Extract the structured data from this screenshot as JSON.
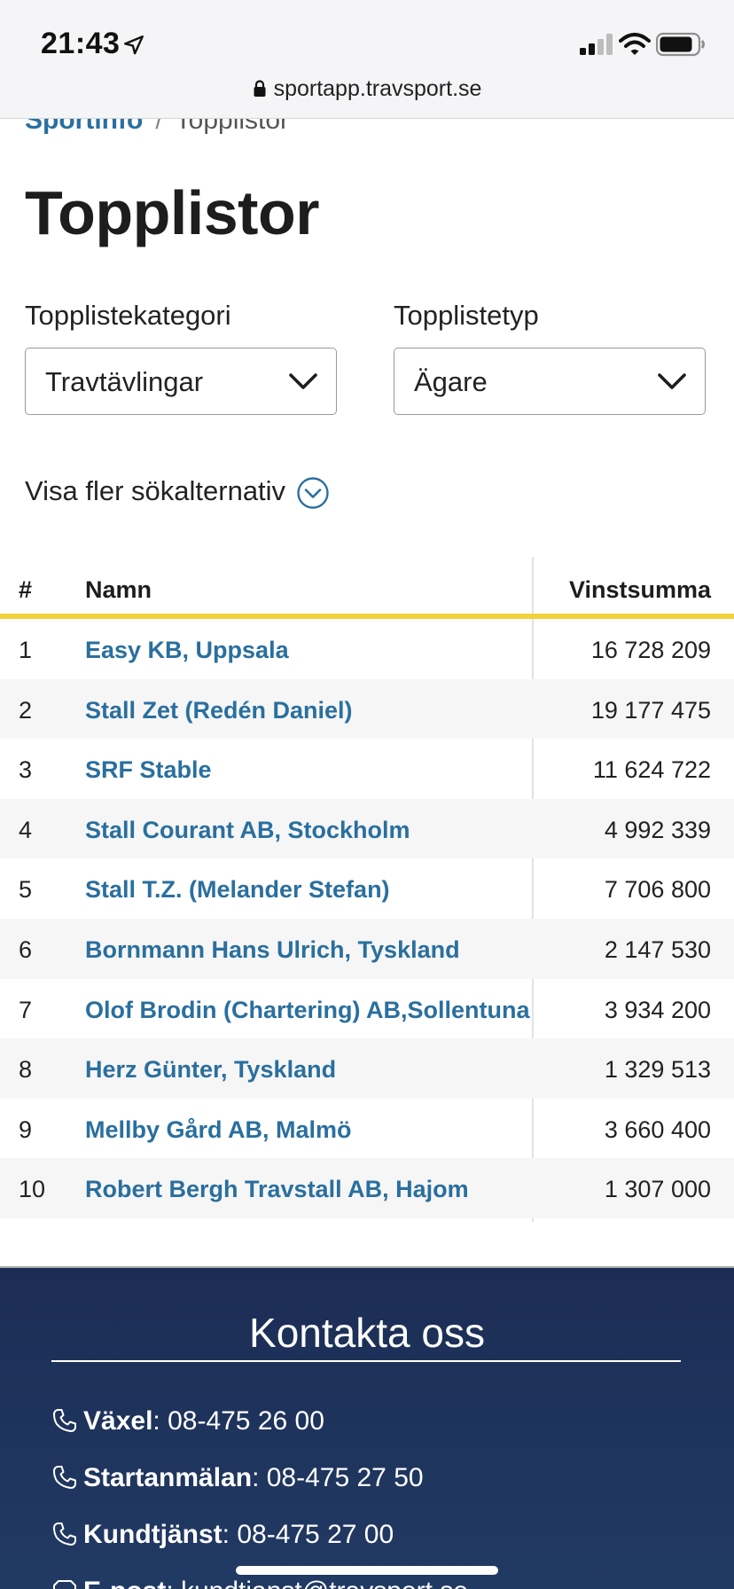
{
  "status_bar": {
    "time": "21:43",
    "url": "sportapp.travsport.se"
  },
  "breadcrumb": {
    "parent": "Sportinfo",
    "separator": "/",
    "current": "Topplistor"
  },
  "page_title": "Topplistor",
  "filters": {
    "category_label": "Topplistekategori",
    "category_value": "Travtävlingar",
    "type_label": "Topplistetyp",
    "type_value": "Ägare"
  },
  "more_options_label": "Visa fler sökalternativ",
  "table": {
    "headers": {
      "rank": "#",
      "name": "Namn",
      "sum": "Vinstsumma"
    },
    "rows": [
      {
        "rank": "1",
        "name": "Easy KB, Uppsala",
        "sum": "16 728 209"
      },
      {
        "rank": "2",
        "name": "Stall Zet (Redén Daniel)",
        "sum": "19 177 475"
      },
      {
        "rank": "3",
        "name": "SRF Stable",
        "sum": "11 624 722"
      },
      {
        "rank": "4",
        "name": "Stall Courant AB, Stockholm",
        "sum": "4 992 339"
      },
      {
        "rank": "5",
        "name": "Stall T.Z. (Melander Stefan)",
        "sum": "7 706 800"
      },
      {
        "rank": "6",
        "name": "Bornmann Hans Ulrich, Tyskland",
        "sum": "2 147 530"
      },
      {
        "rank": "7",
        "name": "Olof Brodin (Chartering) AB,Sollentuna",
        "sum": "3 934 200"
      },
      {
        "rank": "8",
        "name": "Herz Günter, Tyskland",
        "sum": "1 329 513"
      },
      {
        "rank": "9",
        "name": "Mellby Gård AB, Malmö",
        "sum": "3 660 400"
      },
      {
        "rank": "10",
        "name": "Robert Bergh Travstall AB, Hajom",
        "sum": "1 307 000"
      }
    ]
  },
  "footer": {
    "title": "Kontakta oss",
    "contacts": [
      {
        "label": "Växel",
        "value": "08-475 26 00",
        "icon": "phone-icon"
      },
      {
        "label": "Startanmälan",
        "value": "08-475 27 50",
        "icon": "phone-icon"
      },
      {
        "label": "Kundtjänst",
        "value": "08-475 27 00",
        "icon": "phone-icon"
      },
      {
        "label": "E-post",
        "value": "kundtjanst@travsport.se",
        "icon": "mail-icon"
      }
    ]
  },
  "colors": {
    "link": "#2a6f9e",
    "accent_rule": "#f0d23a",
    "footer_bg": "#1c2d55"
  }
}
